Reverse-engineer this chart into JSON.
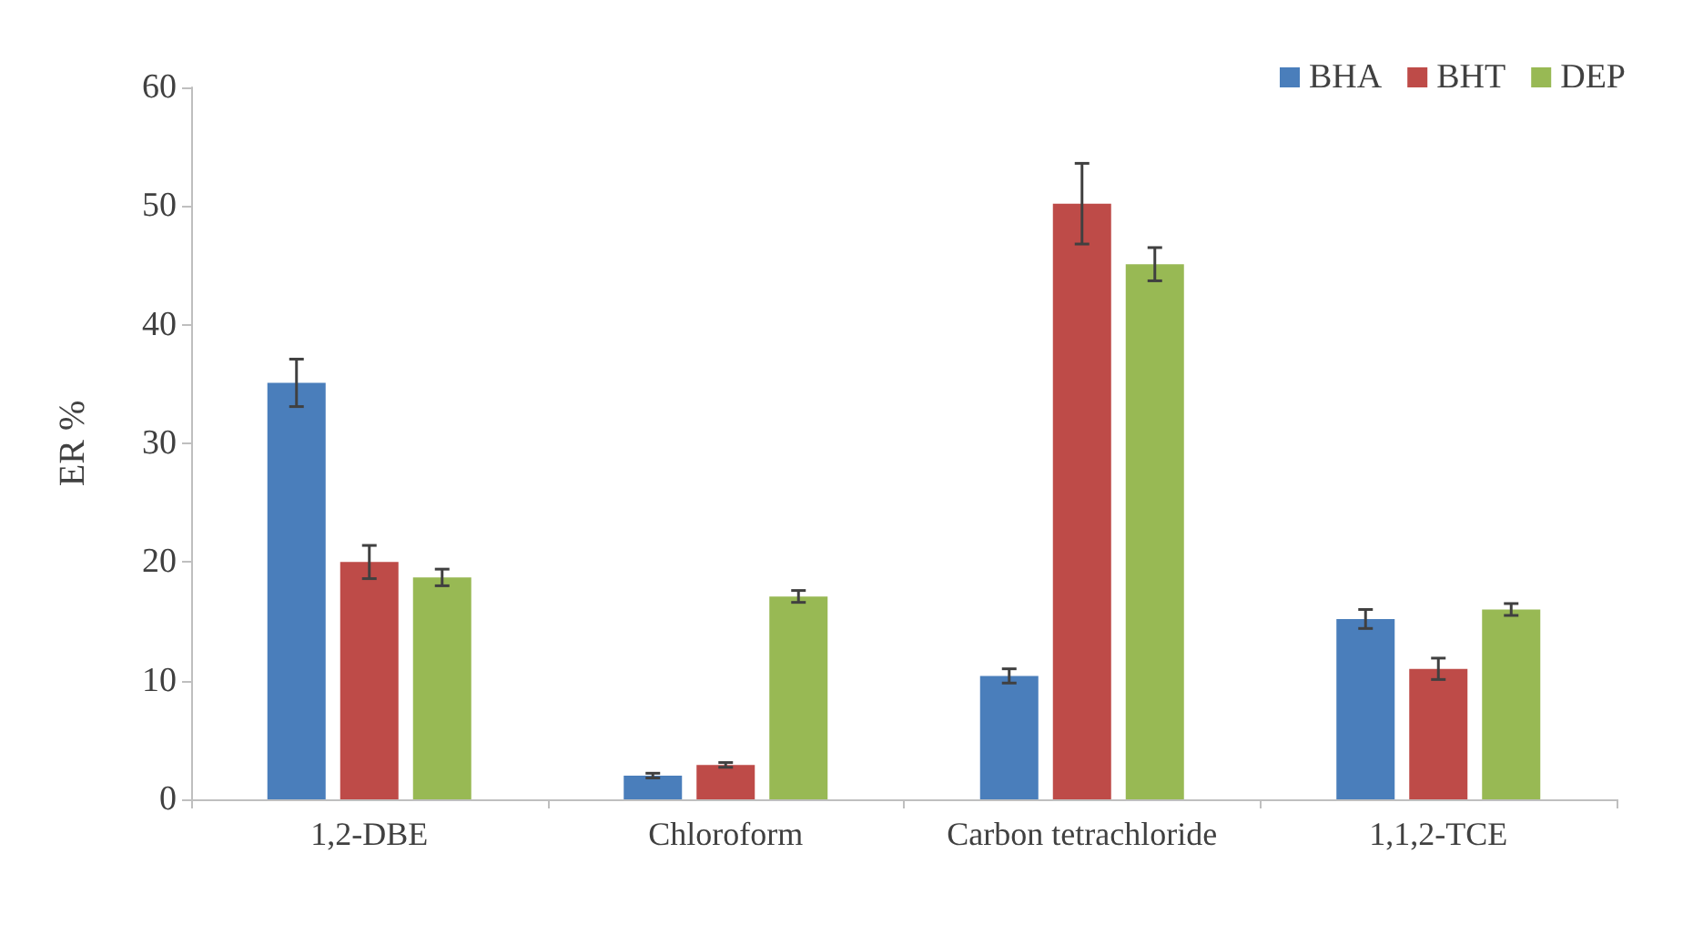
{
  "chart_data": {
    "type": "bar",
    "ylabel": "ER %",
    "categories": [
      "1,2-DBE",
      "Chloroform",
      "Carbon tetrachloride",
      "1,1,2-TCE"
    ],
    "series": [
      {
        "name": "BHA",
        "color": "#4a7ebb",
        "values": [
          35.1,
          2.0,
          10.4,
          15.2
        ],
        "errors": [
          2.0,
          0.2,
          0.6,
          0.8
        ]
      },
      {
        "name": "BHT",
        "color": "#be4b48",
        "values": [
          20.0,
          2.9,
          50.2,
          11.0
        ],
        "errors": [
          1.4,
          0.2,
          3.4,
          0.9
        ]
      },
      {
        "name": "DEP",
        "color": "#98b954",
        "values": [
          18.7,
          17.1,
          45.1,
          16.0
        ],
        "errors": [
          0.7,
          0.5,
          1.4,
          0.5
        ]
      }
    ],
    "ylim": [
      0,
      60
    ],
    "yticks": [
      0,
      10,
      20,
      30,
      40,
      50,
      60
    ],
    "grid": false,
    "legend": "top right"
  }
}
